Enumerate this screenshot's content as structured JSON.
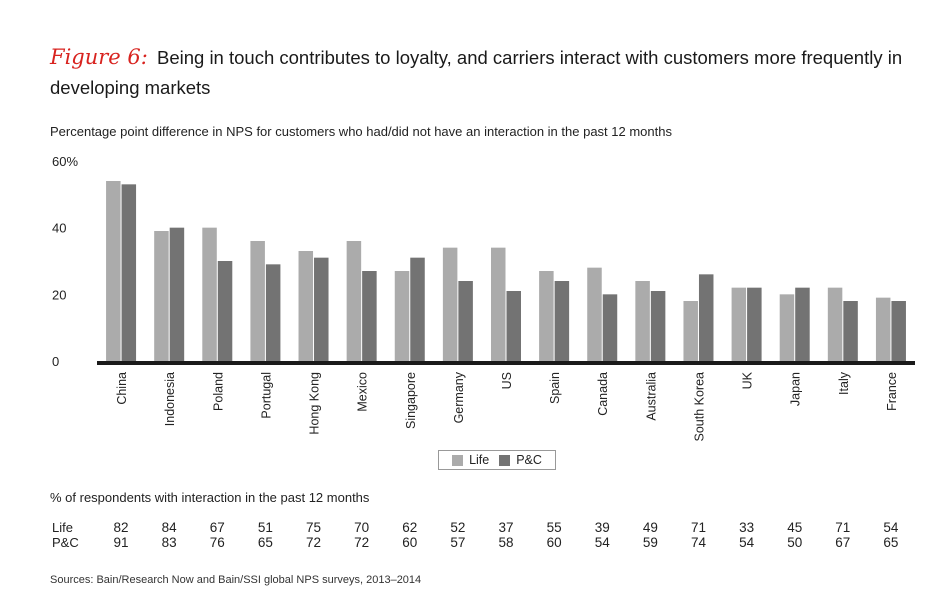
{
  "title": {
    "figure_label": "Figure 6:",
    "text": "Being in touch contributes to loyalty, and carriers interact with customers more frequently in developing markets"
  },
  "chart_data": {
    "type": "bar",
    "subtitle": "Percentage point difference in NPS for customers who had/did not have an interaction in the past 12 months",
    "categories": [
      "China",
      "Indonesia",
      "Poland",
      "Portugal",
      "Hong Kong",
      "Mexico",
      "Singapore",
      "Germany",
      "US",
      "Spain",
      "Canada",
      "Australia",
      "South Korea",
      "UK",
      "Japan",
      "Italy",
      "France"
    ],
    "series": [
      {
        "name": "Life",
        "color": "#ababab",
        "values": [
          54,
          39,
          40,
          36,
          33,
          36,
          27,
          34,
          34,
          27,
          28,
          24,
          18,
          22,
          20,
          22,
          19
        ]
      },
      {
        "name": "P&C",
        "color": "#737373",
        "values": [
          53,
          40,
          30,
          29,
          31,
          27,
          31,
          24,
          21,
          24,
          20,
          21,
          26,
          22,
          22,
          18,
          18
        ]
      }
    ],
    "yticks": [
      "0",
      "20",
      "40",
      "60%"
    ],
    "ylim": [
      0,
      60
    ],
    "legend_position": "bottom-center"
  },
  "interaction_table": {
    "title": "% of respondents with interaction in the past 12 months",
    "rows": [
      {
        "label": "Life",
        "values": [
          82,
          84,
          67,
          51,
          75,
          70,
          62,
          52,
          37,
          55,
          39,
          49,
          71,
          33,
          45,
          71,
          54
        ]
      },
      {
        "label": "P&C",
        "values": [
          91,
          83,
          76,
          65,
          72,
          72,
          60,
          57,
          58,
          60,
          54,
          59,
          74,
          54,
          50,
          67,
          65
        ]
      }
    ]
  },
  "source": "Sources: Bain/Research Now and Bain/SSI global NPS surveys, 2013–2014"
}
